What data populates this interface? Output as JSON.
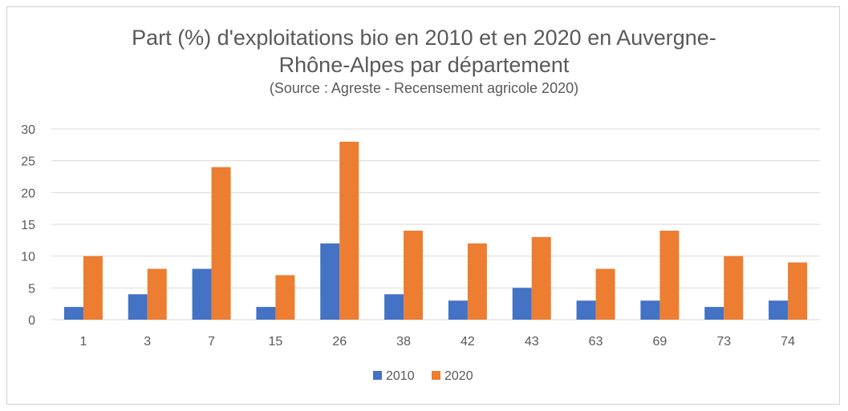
{
  "chart_data": {
    "type": "bar",
    "title_line1": "Part (%) d'exploitations bio en 2010 et en 2020  en Auvergne-",
    "title_line2": "Rhône-Alpes par département",
    "subtitle": "(Source : Agreste - Recensement agricole 2020)",
    "categories": [
      "1",
      "3",
      "7",
      "15",
      "26",
      "38",
      "42",
      "43",
      "63",
      "69",
      "73",
      "74"
    ],
    "series": [
      {
        "name": "2010",
        "color": "#4472C4",
        "values": [
          2,
          4,
          8,
          2,
          12,
          4,
          3,
          5,
          3,
          3,
          2,
          3
        ]
      },
      {
        "name": "2020",
        "color": "#ED7D31",
        "values": [
          10,
          8,
          24,
          7,
          28,
          14,
          12,
          13,
          8,
          14,
          10,
          9
        ]
      }
    ],
    "ylim": [
      0,
      30
    ],
    "yticks": [
      0,
      5,
      10,
      15,
      20,
      25,
      30
    ],
    "grid": true,
    "legend": "bottom"
  }
}
